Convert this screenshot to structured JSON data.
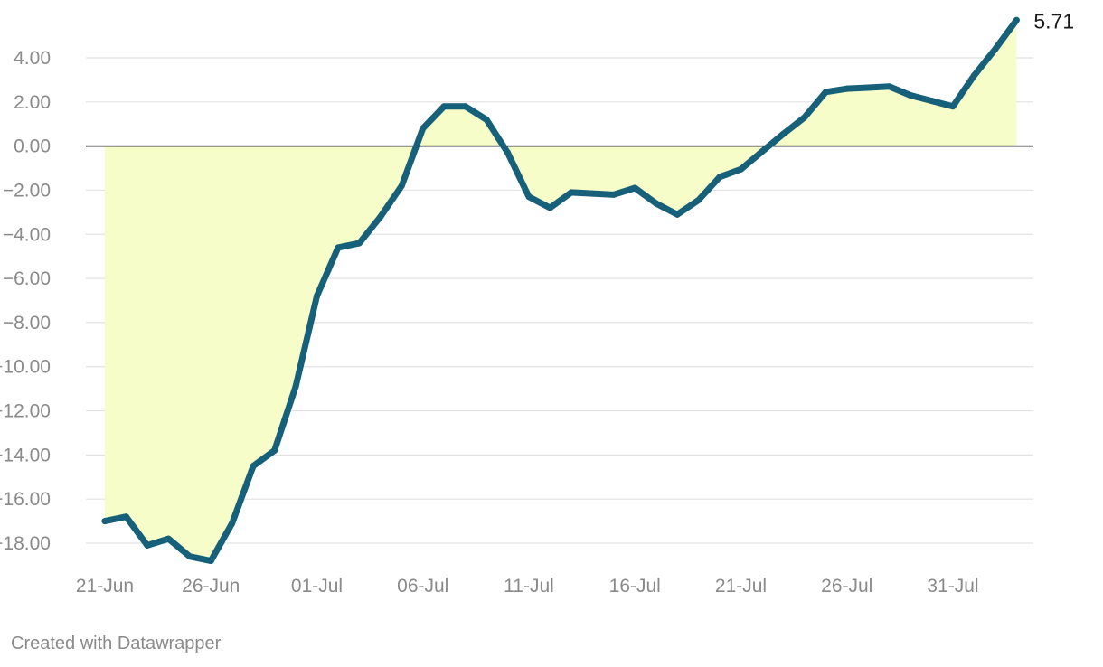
{
  "chart_data": {
    "type": "area",
    "title": "",
    "xlabel": "",
    "ylabel": "",
    "ylim": [
      -19,
      5.9
    ],
    "y_ticks": [
      4,
      2,
      0,
      -2,
      -4,
      -6,
      -8,
      -10,
      -12,
      -14,
      -16,
      -18
    ],
    "y_tick_labels": [
      "4.00",
      "2.00",
      "0.00",
      "−2.00",
      "−4.00",
      "−6.00",
      "−8.00",
      "−10.00",
      "−12.00",
      "−14.00",
      "−16.00",
      "−18.00"
    ],
    "x_tick_labels": [
      "21-Jun",
      "26-Jun",
      "01-Jul",
      "06-Jul",
      "11-Jul",
      "16-Jul",
      "21-Jul",
      "26-Jul",
      "31-Jul"
    ],
    "x_tick_dates": [
      "2020-06-21",
      "2020-06-26",
      "2020-07-01",
      "2020-07-06",
      "2020-07-11",
      "2020-07-16",
      "2020-07-21",
      "2020-07-26",
      "2020-07-31"
    ],
    "grid": true,
    "zero_line": true,
    "end_value_label": "5.71",
    "colors": {
      "line": "#17607a",
      "fill": "#f7fdc8",
      "grid": "#e2e2e2",
      "zero": "#000000"
    },
    "series": [
      {
        "dates": [
          "2020-06-21",
          "2020-06-22",
          "2020-06-23",
          "2020-06-24",
          "2020-06-25",
          "2020-06-26",
          "2020-06-27",
          "2020-06-28",
          "2020-06-29",
          "2020-06-30",
          "2020-07-01",
          "2020-07-02",
          "2020-07-03",
          "2020-07-04",
          "2020-07-05",
          "2020-07-06",
          "2020-07-07",
          "2020-07-08",
          "2020-07-09",
          "2020-07-10",
          "2020-07-11",
          "2020-07-12",
          "2020-07-13",
          "2020-07-14",
          "2020-07-15",
          "2020-07-16",
          "2020-07-17",
          "2020-07-18",
          "2020-07-19",
          "2020-07-20",
          "2020-07-21",
          "2020-07-22",
          "2020-07-23",
          "2020-07-24",
          "2020-07-25",
          "2020-07-26",
          "2020-07-27",
          "2020-07-28",
          "2020-07-29",
          "2020-07-30",
          "2020-07-31",
          "2020-08-01",
          "2020-08-02",
          "2020-08-03"
        ],
        "values": [
          -17.0,
          -16.8,
          -18.1,
          -17.8,
          -18.6,
          -18.8,
          -17.1,
          -14.5,
          -13.8,
          -10.9,
          -6.8,
          -4.6,
          -4.4,
          -3.2,
          -1.8,
          0.8,
          1.8,
          1.8,
          1.2,
          -0.3,
          -2.3,
          -2.8,
          -2.1,
          -2.15,
          -2.2,
          -1.9,
          -2.6,
          -3.1,
          -2.45,
          -1.4,
          -1.05,
          -0.25,
          0.55,
          1.3,
          2.45,
          2.6,
          2.65,
          2.7,
          2.3,
          2.05,
          1.8,
          3.2,
          4.4,
          5.71
        ]
      }
    ]
  },
  "footer": {
    "credit": "Created with Datawrapper"
  }
}
